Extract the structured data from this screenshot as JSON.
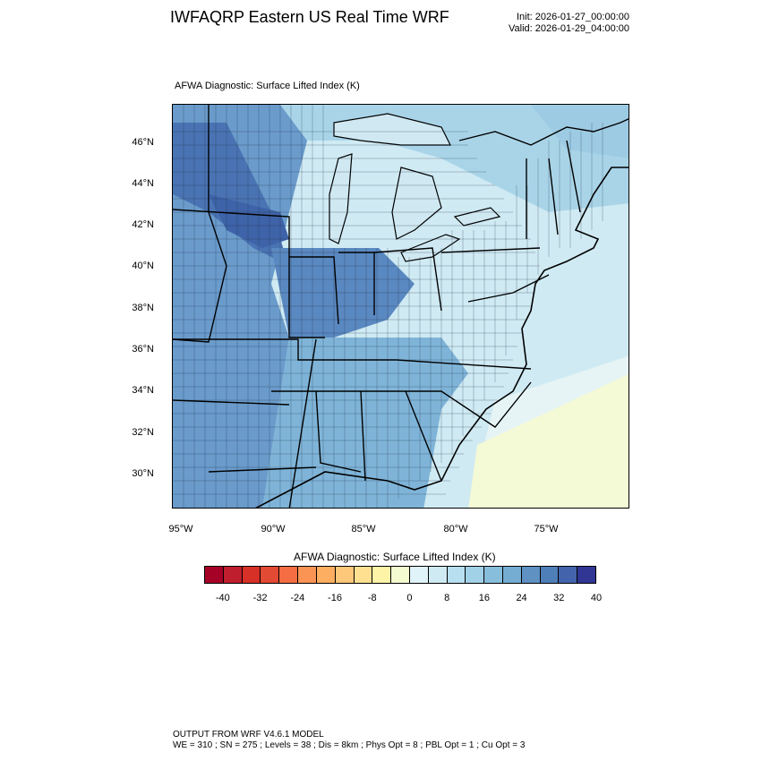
{
  "header": {
    "title": "IWFAQRP Eastern US Real Time WRF",
    "init": "Init: 2026-01-27_00:00:00",
    "valid": "Valid: 2026-01-29_04:00:00"
  },
  "map": {
    "subtitle": "AFWA Diagnostic: Surface Lifted Index   (K)",
    "lat_labels": [
      "46°N",
      "44°N",
      "42°N",
      "40°N",
      "38°N",
      "36°N",
      "34°N",
      "32°N",
      "30°N"
    ],
    "lon_labels": [
      "95°W",
      "90°W",
      "85°W",
      "80°W",
      "75°W"
    ]
  },
  "colorbar": {
    "title": "AFWA Diagnostic: Surface Lifted Index  (K)",
    "labels": [
      "-40",
      "-32",
      "-24",
      "-16",
      "-8",
      "0",
      "8",
      "16",
      "24",
      "32",
      "40"
    ],
    "colors": [
      "#a50026",
      "#be1e2d",
      "#d73027",
      "#e34a33",
      "#f46d43",
      "#f99455",
      "#fdae61",
      "#fdc879",
      "#fee090",
      "#fef4a8",
      "#f5fbd0",
      "#e0f3f8",
      "#cfeaf3",
      "#b7dff0",
      "#a1d1e6",
      "#87bedc",
      "#74add1",
      "#5f91c3",
      "#4f7fb8",
      "#4364ad",
      "#313695"
    ],
    "color_mean": "#9ec8e0"
  },
  "footer": {
    "line1": "OUTPUT FROM WRF V4.6.1 MODEL",
    "line2": "WE = 310 ; SN = 275 ; Levels = 38 ; Dis = 8km ; Phys Opt = 8 ; PBL Opt = 1 ; Cu Opt = 3"
  }
}
